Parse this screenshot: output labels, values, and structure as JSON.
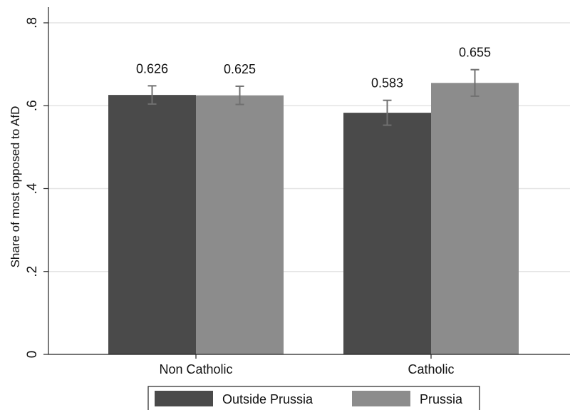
{
  "chart_data": {
    "type": "bar",
    "title": "",
    "xlabel": "",
    "ylabel": "Share of most opposed to AfD",
    "categories": [
      "Non Catholic",
      "Catholic"
    ],
    "series": [
      {
        "name": "Outside Prussia",
        "color": "#4a4a4a",
        "values": [
          0.626,
          0.583
        ],
        "ci_low": [
          0.604,
          0.553
        ],
        "ci_high": [
          0.648,
          0.613
        ]
      },
      {
        "name": "Prussia",
        "color": "#8c8c8c",
        "values": [
          0.625,
          0.655
        ],
        "ci_low": [
          0.603,
          0.623
        ],
        "ci_high": [
          0.647,
          0.687
        ]
      }
    ],
    "value_labels": [
      [
        "0.626",
        "0.583"
      ],
      [
        "0.625",
        "0.655"
      ]
    ],
    "ylim": [
      0,
      0.8
    ],
    "yticks": [
      0,
      0.2,
      0.4,
      0.6,
      0.8
    ],
    "ytick_labels": [
      "0",
      ".2",
      ".4",
      ".6",
      ".8"
    ],
    "grid": true,
    "legend_position": "bottom",
    "error_bar_color": "#707070"
  }
}
